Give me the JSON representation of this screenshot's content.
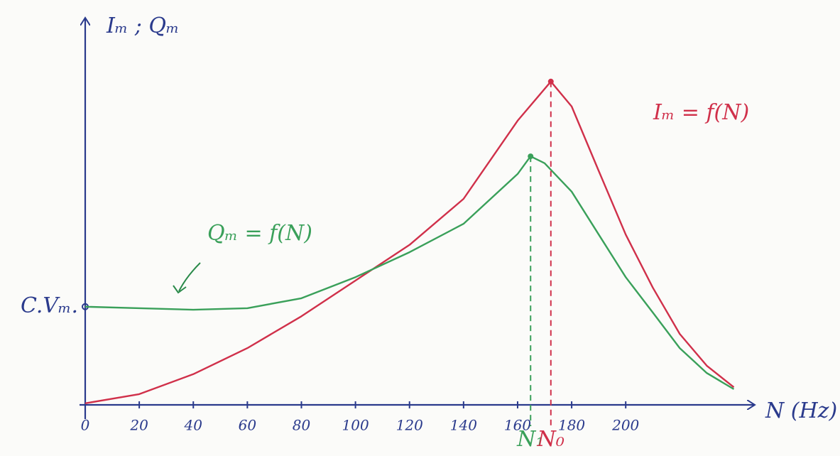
{
  "chart_data": {
    "type": "line",
    "x_label": "N (Hz)",
    "y_label": "Iₘ ; Qₘ",
    "xlim": [
      0,
      247.5
    ],
    "ylim": [
      0,
      100
    ],
    "xticks": [
      0,
      20,
      40,
      60,
      80,
      100,
      120,
      140,
      160,
      180,
      200
    ],
    "yticks": [
      {
        "value": 25.6,
        "label": "C.Vₘ."
      }
    ],
    "axis_color": "#2a3a8c",
    "series": [
      {
        "name": "Iₘ = f(N)",
        "color": "#d0304a",
        "x": [
          0,
          20,
          40,
          60,
          80,
          100,
          120,
          140,
          160,
          172.3,
          180,
          190,
          200,
          210,
          220,
          230,
          240
        ],
        "values": [
          0.4,
          2.8,
          8,
          14.8,
          23.1,
          32.4,
          41.7,
          53.7,
          74.1,
          84.3,
          77.8,
          61,
          44.4,
          30.6,
          18.5,
          10.2,
          4.6
        ]
      },
      {
        "name": "Qₘ = f(N)",
        "color": "#3aa05a",
        "x": [
          0,
          20,
          40,
          60,
          80,
          100,
          120,
          140,
          160,
          164.8,
          170,
          180,
          190,
          200,
          210,
          220,
          230,
          240
        ],
        "values": [
          25.6,
          25.2,
          24.8,
          25.2,
          27.8,
          33.3,
          39.8,
          47.2,
          60.2,
          64.8,
          63,
          55.6,
          44.4,
          33.3,
          24.1,
          14.8,
          8.3,
          4.1
        ]
      }
    ],
    "markers": [
      {
        "label": "N₁",
        "x": 164.8
      },
      {
        "label": "N₀",
        "x": 172.3
      }
    ]
  }
}
